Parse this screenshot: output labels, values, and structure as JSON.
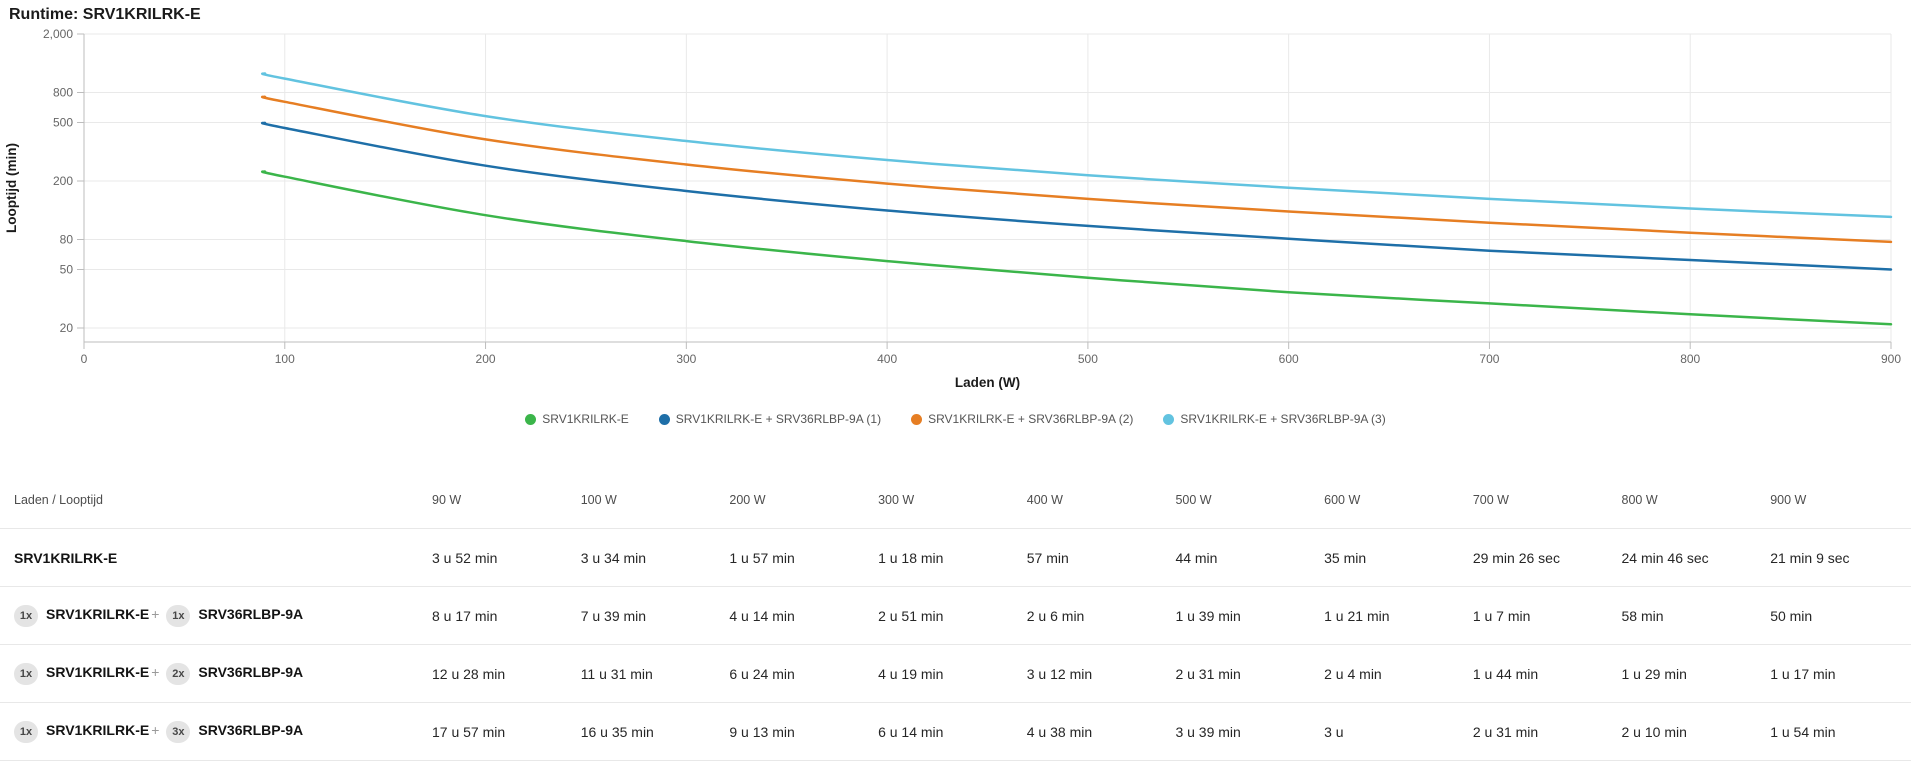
{
  "title": "Runtime: SRV1KRILRK-E",
  "chart_data": {
    "type": "line",
    "title": "Runtime: SRV1KRILRK-E",
    "xlabel": "Laden (W)",
    "ylabel": "Looptijd (min)",
    "grid": true,
    "legend_position": "bottom",
    "x_axis": {
      "min": 0,
      "max": 900,
      "ticks": [
        0,
        100,
        200,
        300,
        400,
        500,
        600,
        700,
        800,
        900
      ]
    },
    "y_axis": {
      "scale": "log",
      "min": 16,
      "max": 2000,
      "ticks": [
        {
          "value": 2000,
          "label": "2,000"
        },
        {
          "value": 800,
          "label": "800"
        },
        {
          "value": 500,
          "label": "500"
        },
        {
          "value": 200,
          "label": "200"
        },
        {
          "value": 80,
          "label": "80"
        },
        {
          "value": 50,
          "label": "50"
        },
        {
          "value": 20,
          "label": "20"
        }
      ]
    },
    "x": [
      90,
      100,
      200,
      300,
      400,
      500,
      600,
      700,
      800,
      900
    ],
    "series": [
      {
        "name": "SRV1KRILRK-E",
        "color": "#3bb54a",
        "values": [
          232,
          214,
          117,
          78,
          57,
          44,
          35,
          29.4,
          24.8,
          21.2
        ]
      },
      {
        "name": "SRV1KRILRK-E + SRV36RLBP-9A (1)",
        "color": "#1e6fa8",
        "values": [
          497,
          459,
          254,
          171,
          126,
          99,
          81,
          67,
          58,
          50
        ]
      },
      {
        "name": "SRV1KRILRK-E + SRV36RLBP-9A (2)",
        "color": "#e67e23",
        "values": [
          748,
          691,
          384,
          259,
          192,
          151,
          124,
          104,
          89,
          77
        ]
      },
      {
        "name": "SRV1KRILRK-E + SRV36RLBP-9A (3)",
        "color": "#62c3e0",
        "values": [
          1077,
          995,
          553,
          374,
          278,
          219,
          180,
          151,
          130,
          114
        ]
      }
    ]
  },
  "table": {
    "corner_header": "Laden / Looptijd",
    "column_headers": [
      "90 W",
      "100 W",
      "200 W",
      "300 W",
      "400 W",
      "500 W",
      "600 W",
      "700 W",
      "800 W",
      "900 W"
    ],
    "rows": [
      {
        "products": [
          {
            "qty": "",
            "name": "SRV1KRILRK-E"
          }
        ],
        "values": [
          "3 u 52 min",
          "3 u 34 min",
          "1 u 57 min",
          "1 u 18 min",
          "57 min",
          "44 min",
          "35 min",
          "29 min 26 sec",
          "24 min 46 sec",
          "21 min 9 sec"
        ]
      },
      {
        "products": [
          {
            "qty": "1x",
            "name": "SRV1KRILRK-E"
          },
          {
            "qty": "1x",
            "name": "SRV36RLBP-9A"
          }
        ],
        "values": [
          "8 u 17 min",
          "7 u 39 min",
          "4 u 14 min",
          "2 u 51 min",
          "2 u 6 min",
          "1 u 39 min",
          "1 u 21 min",
          "1 u 7 min",
          "58 min",
          "50 min"
        ]
      },
      {
        "products": [
          {
            "qty": "1x",
            "name": "SRV1KRILRK-E"
          },
          {
            "qty": "2x",
            "name": "SRV36RLBP-9A"
          }
        ],
        "values": [
          "12 u 28 min",
          "11 u 31 min",
          "6 u 24 min",
          "4 u 19 min",
          "3 u 12 min",
          "2 u 31 min",
          "2 u 4 min",
          "1 u 44 min",
          "1 u 29 min",
          "1 u 17 min"
        ]
      },
      {
        "products": [
          {
            "qty": "1x",
            "name": "SRV1KRILRK-E"
          },
          {
            "qty": "3x",
            "name": "SRV36RLBP-9A"
          }
        ],
        "values": [
          "17 u 57 min",
          "16 u 35 min",
          "9 u 13 min",
          "6 u 14 min",
          "4 u 38 min",
          "3 u 39 min",
          "3 u",
          "2 u 31 min",
          "2 u 10 min",
          "1 u 54 min"
        ]
      }
    ]
  }
}
